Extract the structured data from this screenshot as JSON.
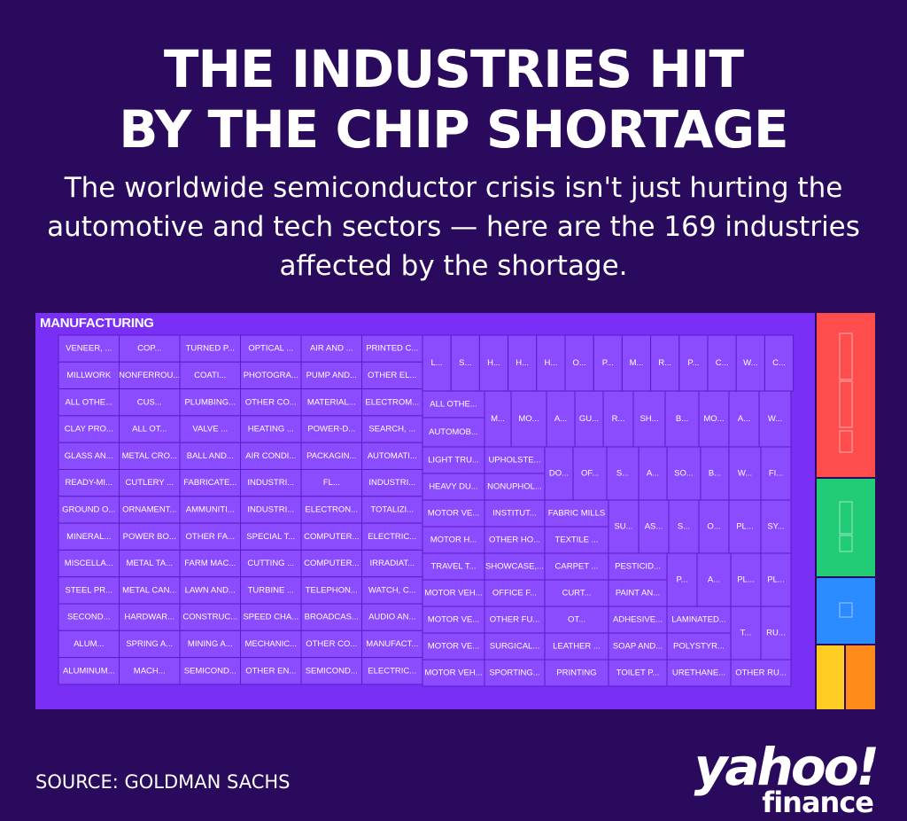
{
  "header": {
    "title_line1": "THE INDUSTRIES HIT",
    "title_line2": "BY THE CHIP SHORTAGE",
    "subtitle": "The worldwide semiconductor crisis isn't just hurting the automotive and tech sectors — here are the 169 industries affected by the shortage."
  },
  "footer": {
    "source": "SOURCE: GOLDMAN SACHS",
    "logo_word": "yahoo!",
    "logo_sub": "finance"
  },
  "colors": {
    "background": "#2a0a5c",
    "manufacturing": "#7a2ff7",
    "manufacturing_cell": "#8b4bff",
    "cell_border": "#5a1ec4",
    "red_sector": "#ff4d4d",
    "green_sector": "#22cc77",
    "blue_sector": "#2a8cff",
    "yellow_sector": "#ffcc22",
    "orange_sector": "#ff8c1a"
  },
  "chart_data": {
    "type": "treemap",
    "title": "MANUFACTURING",
    "group_label": "MANUFACTURING",
    "grid_columns": [
      [
        "VENEER, ...",
        "MILLWORK",
        "ALL OTHE...",
        "CLAY PRO...",
        "GLASS AN...",
        "READY-MI...",
        "GROUND O...",
        "MINERAL...",
        "MISCELLA...",
        "STEEL PR...",
        "SECOND...",
        "ALUM...",
        "ALUMINUM..."
      ],
      [
        "COP...",
        "NONFERROU...",
        "CUS...",
        "ALL OT...",
        "METAL CRO...",
        "CUTLERY ...",
        "ORNAMENT...",
        "POWER BO...",
        "METAL TA...",
        "METAL CAN...",
        "HARDWAR...",
        "SPRING A...",
        "MACH..."
      ],
      [
        "TURNED P...",
        "COATI...",
        "PLUMBING...",
        "VALVE ...",
        "BALL AND...",
        "FABRICATE...",
        "AMMUNITI...",
        "OTHER FA...",
        "FARM MAC...",
        "LAWN AND...",
        "CONSTRUC...",
        "MINING A...",
        "SEMICOND..."
      ],
      [
        "OPTICAL ...",
        "PHOTOGRA...",
        "OTHER CO...",
        "HEATING ...",
        "AIR CONDI...",
        "INDUSTRI...",
        "INDUSTRI...",
        "SPECIAL T...",
        "CUTTING ...",
        "TURBINE ...",
        "SPEED CHA...",
        "MECHANIC...",
        "OTHER EN..."
      ],
      [
        "AIR AND ...",
        "PUMP AND...",
        "MATERIAL...",
        "POWER-D...",
        "PACKAGIN...",
        "FL...",
        "ELECTRON...",
        "COMPUTER...",
        "COMPUTER...",
        "TELEPHON...",
        "BROADCAS...",
        "OTHER CO...",
        "SEMICOND..."
      ],
      [
        "PRINTED C...",
        "OTHER EL...",
        "ELECTROM...",
        "SEARCH, ...",
        "AUTOMATI...",
        "INDUSTRI...",
        "TOTALIZI...",
        "ELECTRIC...",
        "IRRADIAT...",
        "WATCH, C...",
        "AUDIO AN...",
        "MANUFACT...",
        "ELECTRIC..."
      ]
    ],
    "top_row": [
      "L...",
      "S...",
      "H...",
      "H...",
      "H...",
      "O...",
      "P...",
      "M...",
      "R...",
      "P...",
      "C...",
      "W...",
      "C..."
    ],
    "other_cells": [
      "ALL OTHE...",
      "AUTOMOB...",
      "M...",
      "MO...",
      "A...",
      "GU...",
      "R...",
      "SH...",
      "B...",
      "MO...",
      "A...",
      "W...",
      "LIGHT TRU...",
      "HEAVY DU...",
      "UPHOLSTE...",
      "NONUPHOL...",
      "DO...",
      "OF...",
      "S...",
      "A...",
      "SO...",
      "B...",
      "W...",
      "FI...",
      "MOTOR VE...",
      "MOTOR H...",
      "INSTITUT...",
      "OTHER HO...",
      "FABRIC MILLS",
      "TEXTILE ...",
      "SU...",
      "AS...",
      "S...",
      "O...",
      "PL...",
      "SY...",
      "TRAVEL T...",
      "SHOWCASE,...",
      "CARPET ...",
      "PESTICID...",
      "MOTOR VEH...",
      "OFFICE F...",
      "CURT...",
      "PAINT AN...",
      "P...",
      "A...",
      "PL...",
      "PL...",
      "MOTOR VE...",
      "OTHER FU...",
      "OT...",
      "ADHESIVE...",
      "LAMINATED...",
      "T...",
      "RU...",
      "MOTOR VE...",
      "SURGICAL...",
      "LEATHER ...",
      "SOAP AND...",
      "POLYSTYR...",
      "MOTOR VEH...",
      "SPORTING...",
      "PRINTING",
      "TOILET P...",
      "URETHANE...",
      "OTHER RU..."
    ],
    "side_sectors": [
      {
        "color": "#ff4d4d"
      },
      {
        "color": "#22cc77"
      },
      {
        "color": "#2a8cff"
      },
      {
        "color": "#ffcc22"
      },
      {
        "color": "#ff8c1a"
      }
    ]
  }
}
